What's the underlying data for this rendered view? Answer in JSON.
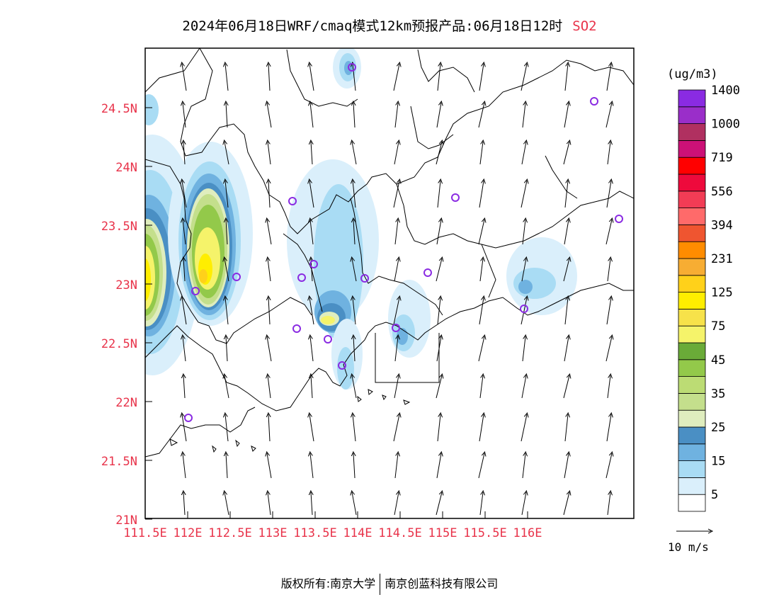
{
  "title": {
    "text": "2024年06月18日WRF/cmaq模式12km预报产品:06月18日12时",
    "variable": "SO2"
  },
  "map": {
    "lat_labels": [
      "24.5N",
      "24N",
      "23.5N",
      "23N",
      "22.5N",
      "22N",
      "21.5N",
      "21N"
    ],
    "lon_labels": [
      "111.5E",
      "112E",
      "112.5E",
      "113E",
      "113.5E",
      "114E",
      "114.5E",
      "115E",
      "115.5E",
      "116E"
    ],
    "label_color": "#e8334a",
    "wind_reference": "10 m/s"
  },
  "colorbar": {
    "unit": "(ug/m3)",
    "colors": [
      "#ffffff",
      "#daeffb",
      "#a9dcf4",
      "#6fb2e0",
      "#4a8fc4",
      "#dfedbe",
      "#c4df8c",
      "#bcdc74",
      "#93c94a",
      "#6aab38",
      "#f5f36a",
      "#f7e24a",
      "#ffee00",
      "#ffd11a",
      "#f7ad33",
      "#ff8c00",
      "#ef5530",
      "#ff6a6a",
      "#f23c55",
      "#ee0a3c",
      "#ff0000",
      "#cc1177",
      "#b03060",
      "#9a2ec9",
      "#8a2be2"
    ],
    "labels": [
      "5",
      "15",
      "25",
      "35",
      "45",
      "75",
      "125",
      "231",
      "394",
      "556",
      "719",
      "1000",
      "1400"
    ]
  },
  "footer": {
    "left": "版权所有:南京大学",
    "right": "南京创蓝科技有限公司"
  }
}
